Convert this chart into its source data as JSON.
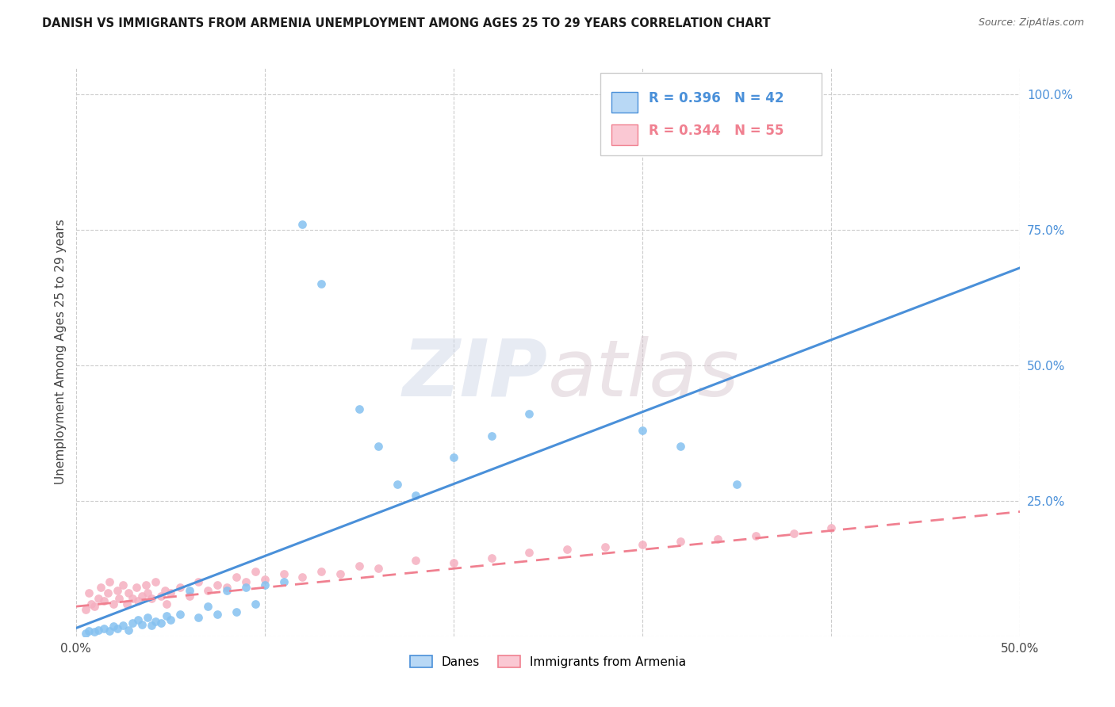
{
  "title": "DANISH VS IMMIGRANTS FROM ARMENIA UNEMPLOYMENT AMONG AGES 25 TO 29 YEARS CORRELATION CHART",
  "source": "Source: ZipAtlas.com",
  "ylabel": "Unemployment Among Ages 25 to 29 years",
  "xlim": [
    0.0,
    0.5
  ],
  "ylim": [
    0.0,
    1.05
  ],
  "x_ticks": [
    0.0,
    0.1,
    0.2,
    0.3,
    0.4,
    0.5
  ],
  "x_tick_labels": [
    "0.0%",
    "",
    "",
    "",
    "",
    "50.0%"
  ],
  "y_ticks": [
    0.0,
    0.25,
    0.5,
    0.75,
    1.0
  ],
  "y_tick_labels": [
    "",
    "25.0%",
    "50.0%",
    "75.0%",
    "100.0%"
  ],
  "danes_color": "#85c1f0",
  "armenia_color": "#f5afc0",
  "danes_line_color": "#4a90d9",
  "armenia_line_color": "#f08090",
  "legend_box_danes": "#b8d8f5",
  "legend_box_armenia": "#fac8d3",
  "danes_R": 0.396,
  "danes_N": 42,
  "armenia_R": 0.344,
  "armenia_N": 55,
  "danes_scatter_x": [
    0.005,
    0.007,
    0.01,
    0.012,
    0.015,
    0.018,
    0.02,
    0.022,
    0.025,
    0.028,
    0.03,
    0.033,
    0.035,
    0.038,
    0.04,
    0.042,
    0.045,
    0.048,
    0.05,
    0.055,
    0.06,
    0.065,
    0.07,
    0.075,
    0.08,
    0.085,
    0.09,
    0.095,
    0.1,
    0.11,
    0.12,
    0.13,
    0.15,
    0.16,
    0.17,
    0.18,
    0.2,
    0.22,
    0.24,
    0.3,
    0.32,
    0.35
  ],
  "danes_scatter_y": [
    0.005,
    0.01,
    0.008,
    0.012,
    0.015,
    0.01,
    0.018,
    0.015,
    0.02,
    0.012,
    0.025,
    0.03,
    0.022,
    0.035,
    0.02,
    0.028,
    0.025,
    0.038,
    0.03,
    0.04,
    0.085,
    0.035,
    0.055,
    0.04,
    0.085,
    0.045,
    0.09,
    0.06,
    0.095,
    0.1,
    0.76,
    0.65,
    0.42,
    0.35,
    0.28,
    0.26,
    0.33,
    0.37,
    0.41,
    0.38,
    0.35,
    0.28
  ],
  "armenia_scatter_x": [
    0.005,
    0.007,
    0.008,
    0.01,
    0.012,
    0.013,
    0.015,
    0.017,
    0.018,
    0.02,
    0.022,
    0.023,
    0.025,
    0.027,
    0.028,
    0.03,
    0.032,
    0.033,
    0.035,
    0.037,
    0.038,
    0.04,
    0.042,
    0.045,
    0.047,
    0.048,
    0.05,
    0.055,
    0.06,
    0.065,
    0.07,
    0.075,
    0.08,
    0.085,
    0.09,
    0.095,
    0.1,
    0.11,
    0.12,
    0.13,
    0.14,
    0.15,
    0.16,
    0.18,
    0.2,
    0.22,
    0.24,
    0.26,
    0.28,
    0.3,
    0.32,
    0.34,
    0.36,
    0.38,
    0.4
  ],
  "armenia_scatter_y": [
    0.05,
    0.08,
    0.06,
    0.055,
    0.07,
    0.09,
    0.065,
    0.08,
    0.1,
    0.06,
    0.085,
    0.07,
    0.095,
    0.06,
    0.08,
    0.07,
    0.09,
    0.065,
    0.075,
    0.095,
    0.08,
    0.07,
    0.1,
    0.075,
    0.085,
    0.06,
    0.08,
    0.09,
    0.075,
    0.1,
    0.085,
    0.095,
    0.09,
    0.11,
    0.1,
    0.12,
    0.105,
    0.115,
    0.11,
    0.12,
    0.115,
    0.13,
    0.125,
    0.14,
    0.135,
    0.145,
    0.155,
    0.16,
    0.165,
    0.17,
    0.175,
    0.18,
    0.185,
    0.19,
    0.2
  ],
  "danes_trendline_x": [
    0.0,
    0.5
  ],
  "danes_trendline_y": [
    0.015,
    0.68
  ],
  "armenia_trendline_x": [
    0.0,
    0.5
  ],
  "armenia_trendline_y": [
    0.055,
    0.23
  ],
  "watermark_zip": "ZIP",
  "watermark_atlas": "atlas",
  "background_color": "#ffffff",
  "grid_color": "#cccccc"
}
